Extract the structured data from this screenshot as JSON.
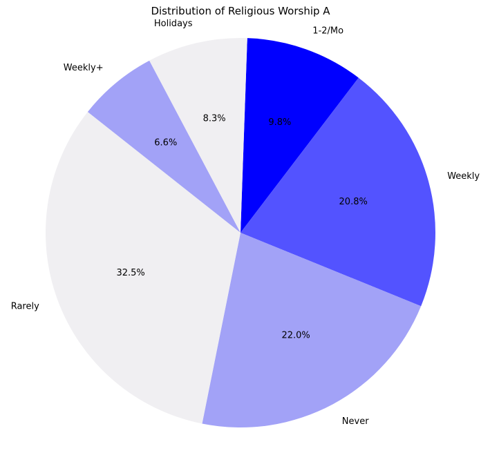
{
  "chart_data": {
    "type": "pie",
    "title": "Distribution of Religious Worship A",
    "start_angle_deg": 88,
    "direction": "clockwise",
    "slices": [
      {
        "label": "1-2/Mo",
        "value": 9.8,
        "display": "9.8%",
        "color": "#0000ff"
      },
      {
        "label": "Weekly",
        "value": 20.8,
        "display": "20.8%",
        "color": "#5353ff"
      },
      {
        "label": "Never",
        "value": 22.0,
        "display": "22.0%",
        "color": "#a2a2f7"
      },
      {
        "label": "Rarely",
        "value": 32.5,
        "display": "32.5%",
        "color": "#f0eff2"
      },
      {
        "label": "Weekly+",
        "value": 6.6,
        "display": "6.6%",
        "color": "#a2a2f7"
      },
      {
        "label": "Holidays",
        "value": 8.3,
        "display": "8.3%",
        "color": "#f0eff2"
      }
    ]
  }
}
